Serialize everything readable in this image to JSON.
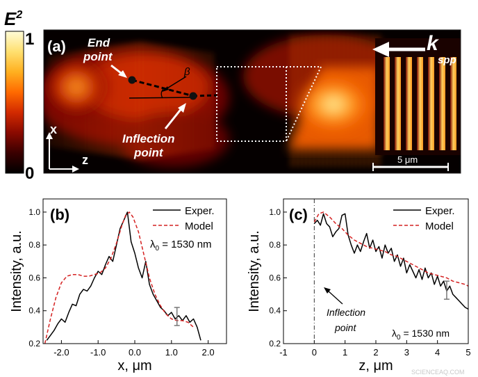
{
  "colorbar": {
    "label_main": "E",
    "label_sup": "2",
    "max_label": "1",
    "min_label": "0",
    "colors": [
      "#000000",
      "#3a0000",
      "#8a0a00",
      "#d22a00",
      "#ff6a00",
      "#ffb020",
      "#ffe070",
      "#fffcd8"
    ]
  },
  "panel_a": {
    "label": "(a)",
    "end_point": [
      "End",
      "point"
    ],
    "inflection_point": [
      "Inflection",
      "point"
    ],
    "beta": "β",
    "k_main": "k",
    "k_sub": "spp",
    "axis_x": "x",
    "axis_z": "z",
    "scalebar": "5 μm"
  },
  "chart_data": [
    {
      "type": "line",
      "panel_label": "(b)",
      "xlabel": "x, μm",
      "ylabel": "Intensity, a.u.",
      "xlim": [
        -2.5,
        2.5
      ],
      "ylim": [
        0.2,
        1.08
      ],
      "xticks": [
        -2.0,
        -1.0,
        0.0,
        1.0,
        2.0
      ],
      "xtick_labels": [
        "-2.0",
        "-1.0",
        "0.0",
        "1.0",
        "2.0"
      ],
      "yticks": [
        0.2,
        0.4,
        0.6,
        0.8,
        1.0
      ],
      "ytick_labels": [
        "0.2",
        "0.4",
        "0.6",
        "0.8",
        "1.0"
      ],
      "legend": {
        "placement": "top-right"
      },
      "annotation": {
        "lambda_sym": "λ",
        "lambda_sub": "0",
        "lambda_text": " = 1530 nm"
      },
      "errorbar": {
        "x": 1.15,
        "y": 0.36,
        "low": 0.31,
        "high": 0.42
      },
      "series": [
        {
          "name": "Exper.",
          "style": "solid",
          "color": "#000000",
          "x": [
            -2.4,
            -2.3,
            -2.2,
            -2.1,
            -2.0,
            -1.9,
            -1.8,
            -1.7,
            -1.6,
            -1.5,
            -1.4,
            -1.3,
            -1.2,
            -1.1,
            -1.0,
            -0.9,
            -0.8,
            -0.7,
            -0.6,
            -0.5,
            -0.4,
            -0.3,
            -0.2,
            -0.1,
            0.0,
            0.1,
            0.2,
            0.3,
            0.4,
            0.5,
            0.6,
            0.7,
            0.8,
            0.9,
            1.0,
            1.1,
            1.2,
            1.3,
            1.4,
            1.5,
            1.6,
            1.7,
            1.8
          ],
          "y": [
            0.22,
            0.25,
            0.28,
            0.32,
            0.35,
            0.33,
            0.39,
            0.44,
            0.43,
            0.5,
            0.53,
            0.52,
            0.55,
            0.6,
            0.64,
            0.62,
            0.68,
            0.73,
            0.7,
            0.8,
            0.9,
            0.95,
            1.0,
            0.82,
            0.75,
            0.66,
            0.6,
            0.7,
            0.56,
            0.5,
            0.46,
            0.42,
            0.4,
            0.37,
            0.39,
            0.35,
            0.37,
            0.34,
            0.37,
            0.33,
            0.35,
            0.3,
            0.22
          ]
        },
        {
          "name": "Model",
          "style": "dashed",
          "color": "#d42020",
          "x": [
            -2.45,
            -2.3,
            -2.15,
            -2.0,
            -1.85,
            -1.7,
            -1.55,
            -1.4,
            -1.25,
            -1.1,
            -0.95,
            -0.8,
            -0.65,
            -0.5,
            -0.35,
            -0.25,
            -0.15,
            -0.05,
            0.1,
            0.25,
            0.4,
            0.55,
            0.7,
            0.85,
            1.0,
            1.15,
            1.3,
            1.45,
            1.6
          ],
          "y": [
            0.2,
            0.35,
            0.48,
            0.57,
            0.61,
            0.62,
            0.62,
            0.61,
            0.61,
            0.62,
            0.63,
            0.66,
            0.72,
            0.81,
            0.92,
            0.98,
            1.0,
            0.97,
            0.88,
            0.74,
            0.6,
            0.5,
            0.43,
            0.38,
            0.35,
            0.34,
            0.34,
            0.33,
            0.3
          ]
        }
      ]
    },
    {
      "type": "line",
      "panel_label": "(c)",
      "xlabel": "z, μm",
      "ylabel": "Intensity, a.u.",
      "xlim": [
        -1,
        5
      ],
      "ylim": [
        0.2,
        1.08
      ],
      "xticks": [
        -1,
        0,
        1,
        2,
        3,
        4,
        5
      ],
      "xtick_labels": [
        "-1",
        "0",
        "1",
        "2",
        "3",
        "4",
        "5"
      ],
      "yticks": [
        0.2,
        0.4,
        0.6,
        0.8,
        1.0
      ],
      "ytick_labels": [
        "0.2",
        "0.4",
        "0.6",
        "0.8",
        "1.0"
      ],
      "legend": {
        "placement": "top-right"
      },
      "annotation": {
        "lambda_sym": "λ",
        "lambda_sub": "0",
        "lambda_text": " = 1530 nm"
      },
      "inflection_label": [
        "Inflection",
        "point"
      ],
      "vline_x": 0,
      "errorbar": {
        "x": 4.3,
        "y": 0.52,
        "low": 0.47,
        "high": 0.58
      },
      "series": [
        {
          "name": "Exper.",
          "style": "solid",
          "color": "#000000",
          "x": [
            0.0,
            0.1,
            0.2,
            0.3,
            0.4,
            0.5,
            0.6,
            0.7,
            0.8,
            0.9,
            1.0,
            1.1,
            1.2,
            1.3,
            1.4,
            1.5,
            1.6,
            1.7,
            1.8,
            1.9,
            2.0,
            2.1,
            2.2,
            2.3,
            2.4,
            2.5,
            2.6,
            2.7,
            2.8,
            2.9,
            3.0,
            3.1,
            3.2,
            3.3,
            3.4,
            3.5,
            3.6,
            3.7,
            3.8,
            3.9,
            4.0,
            4.1,
            4.2,
            4.3,
            4.4,
            4.5,
            4.6,
            4.7,
            4.8,
            4.9,
            5.0
          ],
          "y": [
            0.93,
            0.95,
            0.92,
            0.99,
            0.93,
            0.91,
            0.85,
            0.88,
            0.9,
            0.98,
            0.99,
            0.86,
            0.8,
            0.75,
            0.8,
            0.76,
            0.82,
            0.87,
            0.78,
            0.83,
            0.76,
            0.79,
            0.72,
            0.8,
            0.75,
            0.78,
            0.7,
            0.74,
            0.67,
            0.72,
            0.63,
            0.68,
            0.64,
            0.6,
            0.65,
            0.59,
            0.66,
            0.6,
            0.63,
            0.56,
            0.61,
            0.55,
            0.58,
            0.52,
            0.55,
            0.5,
            0.48,
            0.46,
            0.44,
            0.42,
            0.41
          ]
        },
        {
          "name": "Model",
          "style": "dashed",
          "color": "#d42020",
          "x": [
            0.0,
            0.15,
            0.3,
            0.5,
            0.7,
            0.9,
            1.1,
            1.3,
            1.5,
            1.7,
            1.9,
            2.1,
            2.3,
            2.5,
            2.7,
            2.9,
            3.1,
            3.3,
            3.5,
            3.7,
            3.9,
            4.1,
            4.3,
            4.5,
            4.7,
            4.9,
            5.0
          ],
          "y": [
            0.94,
            0.99,
            1.0,
            0.97,
            0.93,
            0.9,
            0.86,
            0.83,
            0.81,
            0.79,
            0.78,
            0.77,
            0.76,
            0.74,
            0.73,
            0.71,
            0.69,
            0.67,
            0.65,
            0.63,
            0.62,
            0.61,
            0.6,
            0.58,
            0.57,
            0.56,
            0.55
          ]
        }
      ]
    }
  ],
  "watermark": "SCIENCEAQ.COM"
}
